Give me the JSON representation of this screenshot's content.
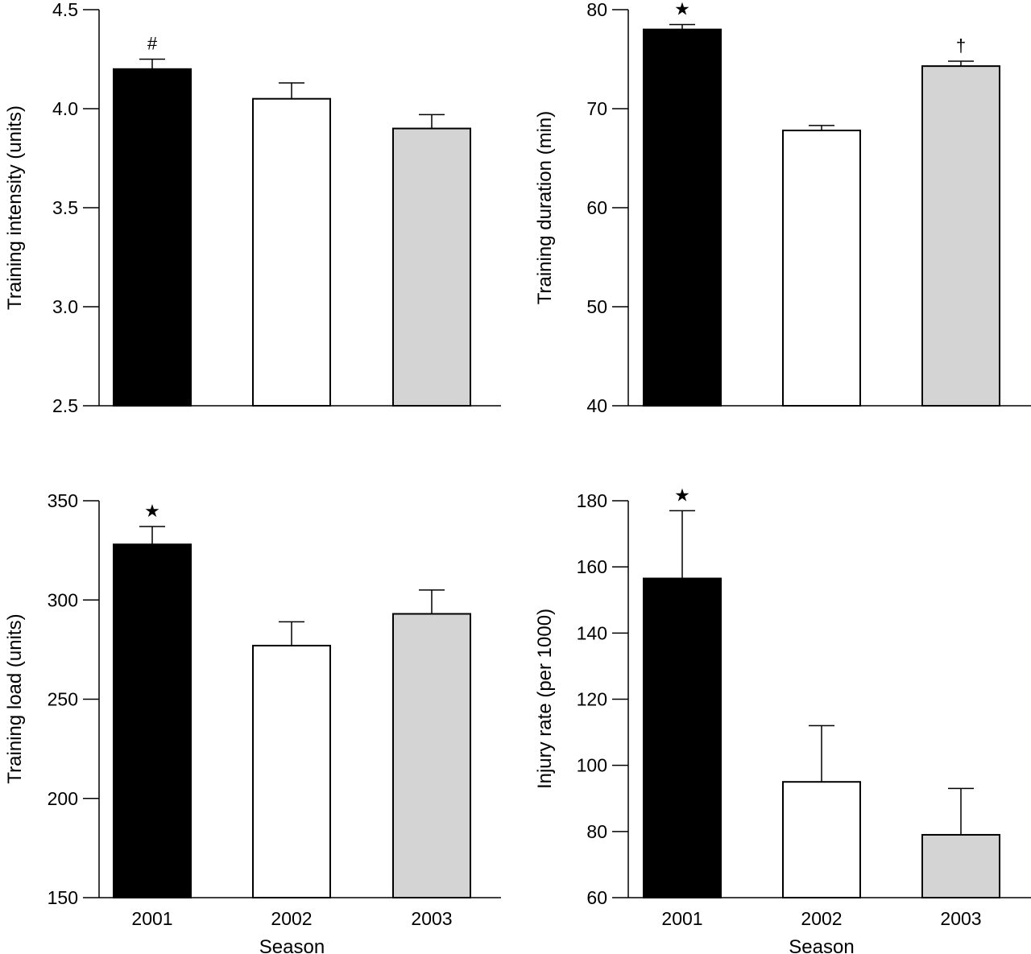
{
  "colors": {
    "2001": "#000000",
    "2002": "#ffffff",
    "2003": "#d4d4d4",
    "stroke": "#000000"
  },
  "chart_data": [
    {
      "type": "bar",
      "panel": "training-intensity",
      "categories": [
        "2001",
        "2002",
        "2003"
      ],
      "values": [
        4.2,
        4.05,
        3.9
      ],
      "errors": [
        0.05,
        0.08,
        0.07
      ],
      "annotations": [
        "#",
        "",
        ""
      ],
      "xlabel": "",
      "ylabel": "Training intensity (units)",
      "ylim": [
        2.5,
        4.5
      ],
      "yticks": [
        "2.5",
        "3.0",
        "3.5",
        "4.0",
        "4.5"
      ],
      "show_xticks": false,
      "grid": false
    },
    {
      "type": "bar",
      "panel": "training-duration",
      "categories": [
        "2001",
        "2002",
        "2003"
      ],
      "values": [
        78,
        67.8,
        74.3
      ],
      "errors": [
        0.5,
        0.5,
        0.5
      ],
      "annotations": [
        "★",
        "",
        "†"
      ],
      "xlabel": "",
      "ylabel": "Training duration (min)",
      "ylim": [
        40,
        80
      ],
      "yticks": [
        "40",
        "50",
        "60",
        "70",
        "80"
      ],
      "show_xticks": false,
      "grid": false
    },
    {
      "type": "bar",
      "panel": "training-load",
      "categories": [
        "2001",
        "2002",
        "2003"
      ],
      "values": [
        328,
        277,
        293
      ],
      "errors": [
        9,
        12,
        12
      ],
      "annotations": [
        "★",
        "",
        ""
      ],
      "xlabel": "Season",
      "ylabel": "Training load (units)",
      "ylim": [
        150,
        350
      ],
      "yticks": [
        "150",
        "200",
        "250",
        "300",
        "350"
      ],
      "show_xticks": true,
      "grid": false
    },
    {
      "type": "bar",
      "panel": "injury-rate",
      "categories": [
        "2001",
        "2002",
        "2003"
      ],
      "values": [
        156.5,
        95,
        79
      ],
      "errors": [
        20.5,
        17,
        14
      ],
      "annotations": [
        "★",
        "",
        ""
      ],
      "xlabel": "Season",
      "ylabel": "Injury rate (per 1000)",
      "ylim": [
        60,
        180
      ],
      "yticks": [
        "60",
        "80",
        "100",
        "120",
        "140",
        "160",
        "180"
      ],
      "show_xticks": true,
      "grid": false
    }
  ]
}
